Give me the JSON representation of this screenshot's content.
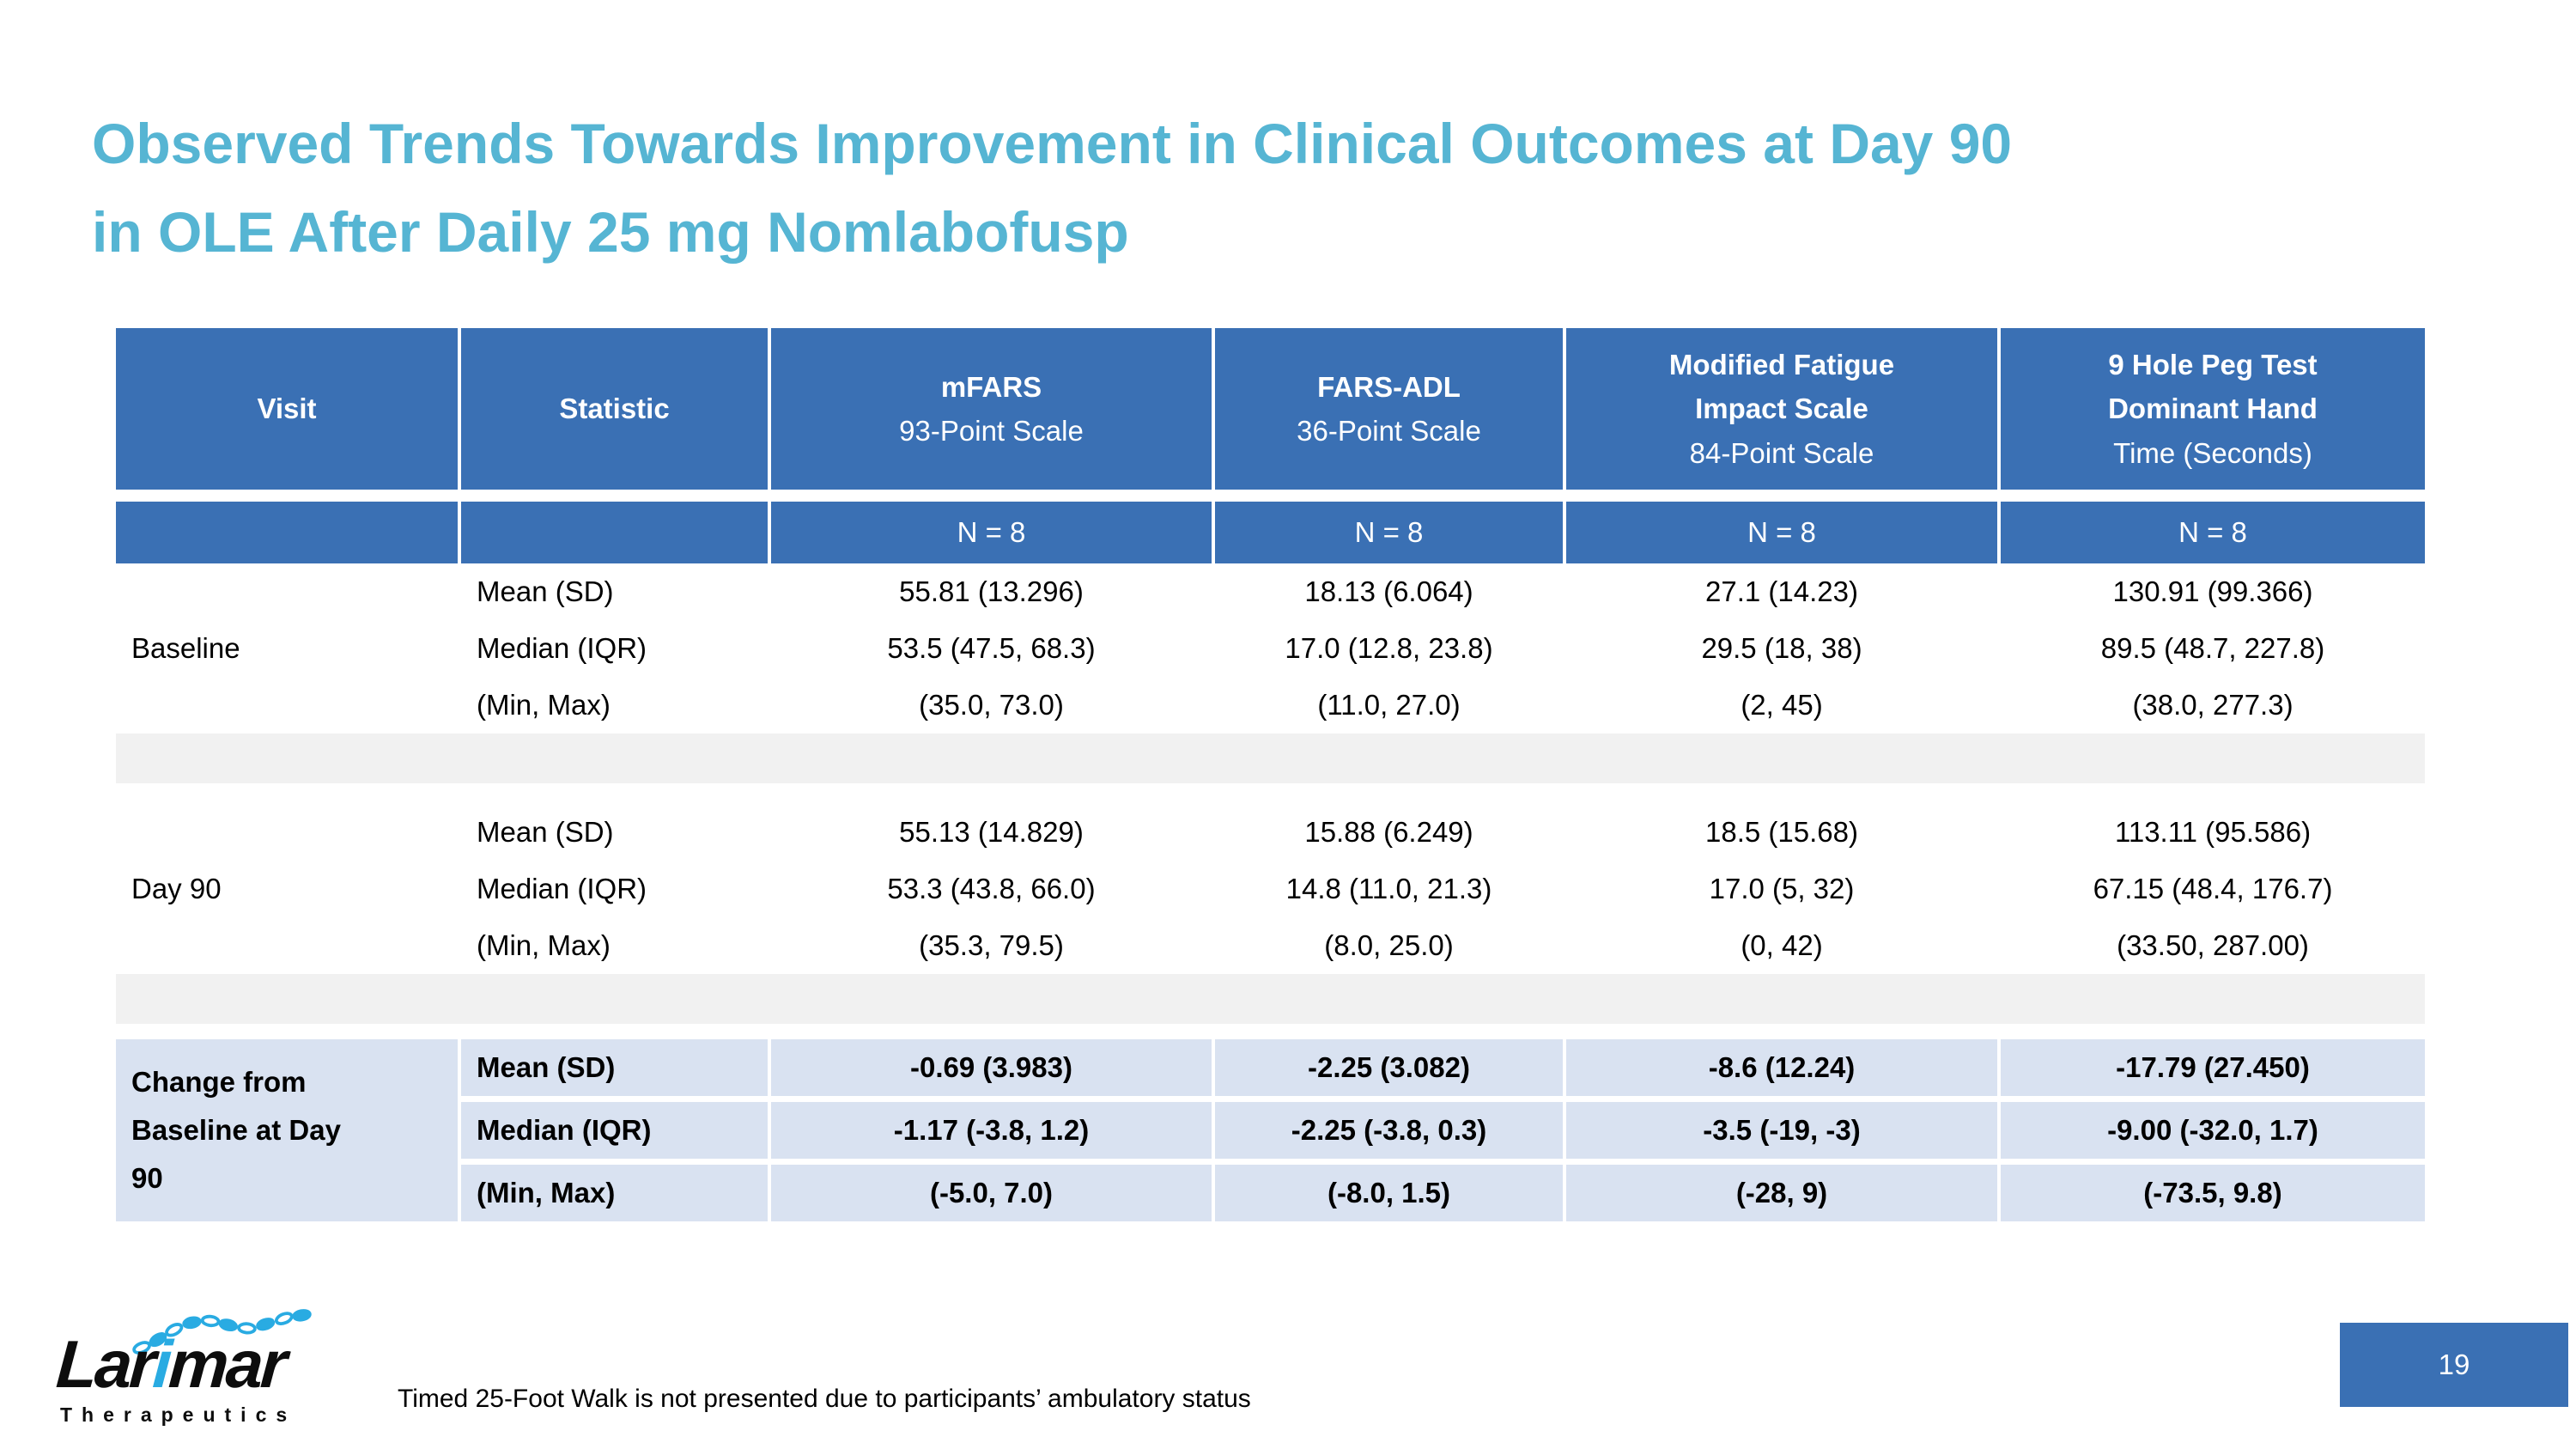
{
  "slide": {
    "title_line1": "Observed Trends Towards Improvement in Clinical Outcomes at Day 90",
    "title_line2": "in OLE After Daily 25 mg Nomlabofusp",
    "footnote": "Timed 25-Foot Walk is not presented due to participants’ ambulatory status",
    "page_number": "19",
    "logo": {
      "part1": "Lar",
      "i": "i",
      "part2": "mar",
      "sub": "Therapeutics"
    }
  },
  "colors": {
    "accent_blue": "#3A70B4",
    "light_blue": "#D9E2F1",
    "divider_gray": "#F1F1F1",
    "title_teal": "#56B5D3",
    "logo_cyan": "#29ABE2"
  },
  "table": {
    "columns": [
      {
        "label": "Visit",
        "sub": ""
      },
      {
        "label": "Statistic",
        "sub": ""
      },
      {
        "label": "mFARS",
        "sub": "93-Point Scale"
      },
      {
        "label": "FARS-ADL",
        "sub": "36-Point Scale"
      },
      {
        "label": "Modified Fatigue Impact Scale",
        "sub": "84-Point Scale"
      },
      {
        "label": "9 Hole Peg Test Dominant Hand",
        "sub": "Time (Seconds)"
      }
    ],
    "n_row": [
      "",
      "",
      "N = 8",
      "N = 8",
      "N = 8",
      "N = 8"
    ],
    "sections": [
      {
        "visit": "Baseline",
        "highlight": false,
        "rows": [
          {
            "statistic": "Mean (SD)",
            "values": [
              "55.81 (13.296)",
              "18.13 (6.064)",
              "27.1 (14.23)",
              "130.91 (99.366)"
            ]
          },
          {
            "statistic": "Median (IQR)",
            "values": [
              "53.5 (47.5, 68.3)",
              "17.0 (12.8, 23.8)",
              "29.5 (18, 38)",
              "89.5 (48.7, 227.8)"
            ]
          },
          {
            "statistic": "(Min, Max)",
            "values": [
              "(35.0, 73.0)",
              "(11.0, 27.0)",
              "(2, 45)",
              "(38.0, 277.3)"
            ]
          }
        ]
      },
      {
        "visit": "Day 90",
        "highlight": false,
        "rows": [
          {
            "statistic": "Mean (SD)",
            "values": [
              "55.13 (14.829)",
              "15.88 (6.249)",
              "18.5 (15.68)",
              "113.11 (95.586)"
            ]
          },
          {
            "statistic": "Median (IQR)",
            "values": [
              "53.3 (43.8, 66.0)",
              "14.8 (11.0, 21.3)",
              "17.0 (5, 32)",
              "67.15 (48.4, 176.7)"
            ]
          },
          {
            "statistic": "(Min, Max)",
            "values": [
              "(35.3, 79.5)",
              "(8.0, 25.0)",
              "(0, 42)",
              "(33.50, 287.00)"
            ]
          }
        ]
      },
      {
        "visit": "Change from Baseline at Day 90",
        "highlight": true,
        "rows": [
          {
            "statistic": "Mean (SD)",
            "values": [
              "-0.69 (3.983)",
              "-2.25 (3.082)",
              "-8.6 (12.24)",
              "-17.79 (27.450)"
            ]
          },
          {
            "statistic": "Median (IQR)",
            "values": [
              "-1.17 (-3.8, 1.2)",
              "-2.25 (-3.8, 0.3)",
              "-3.5 (-19, -3)",
              "-9.00 (-32.0, 1.7)"
            ]
          },
          {
            "statistic": "(Min, Max)",
            "values": [
              "(-5.0, 7.0)",
              "(-8.0, 1.5)",
              "(-28, 9)",
              "(-73.5, 9.8)"
            ]
          }
        ]
      }
    ]
  }
}
